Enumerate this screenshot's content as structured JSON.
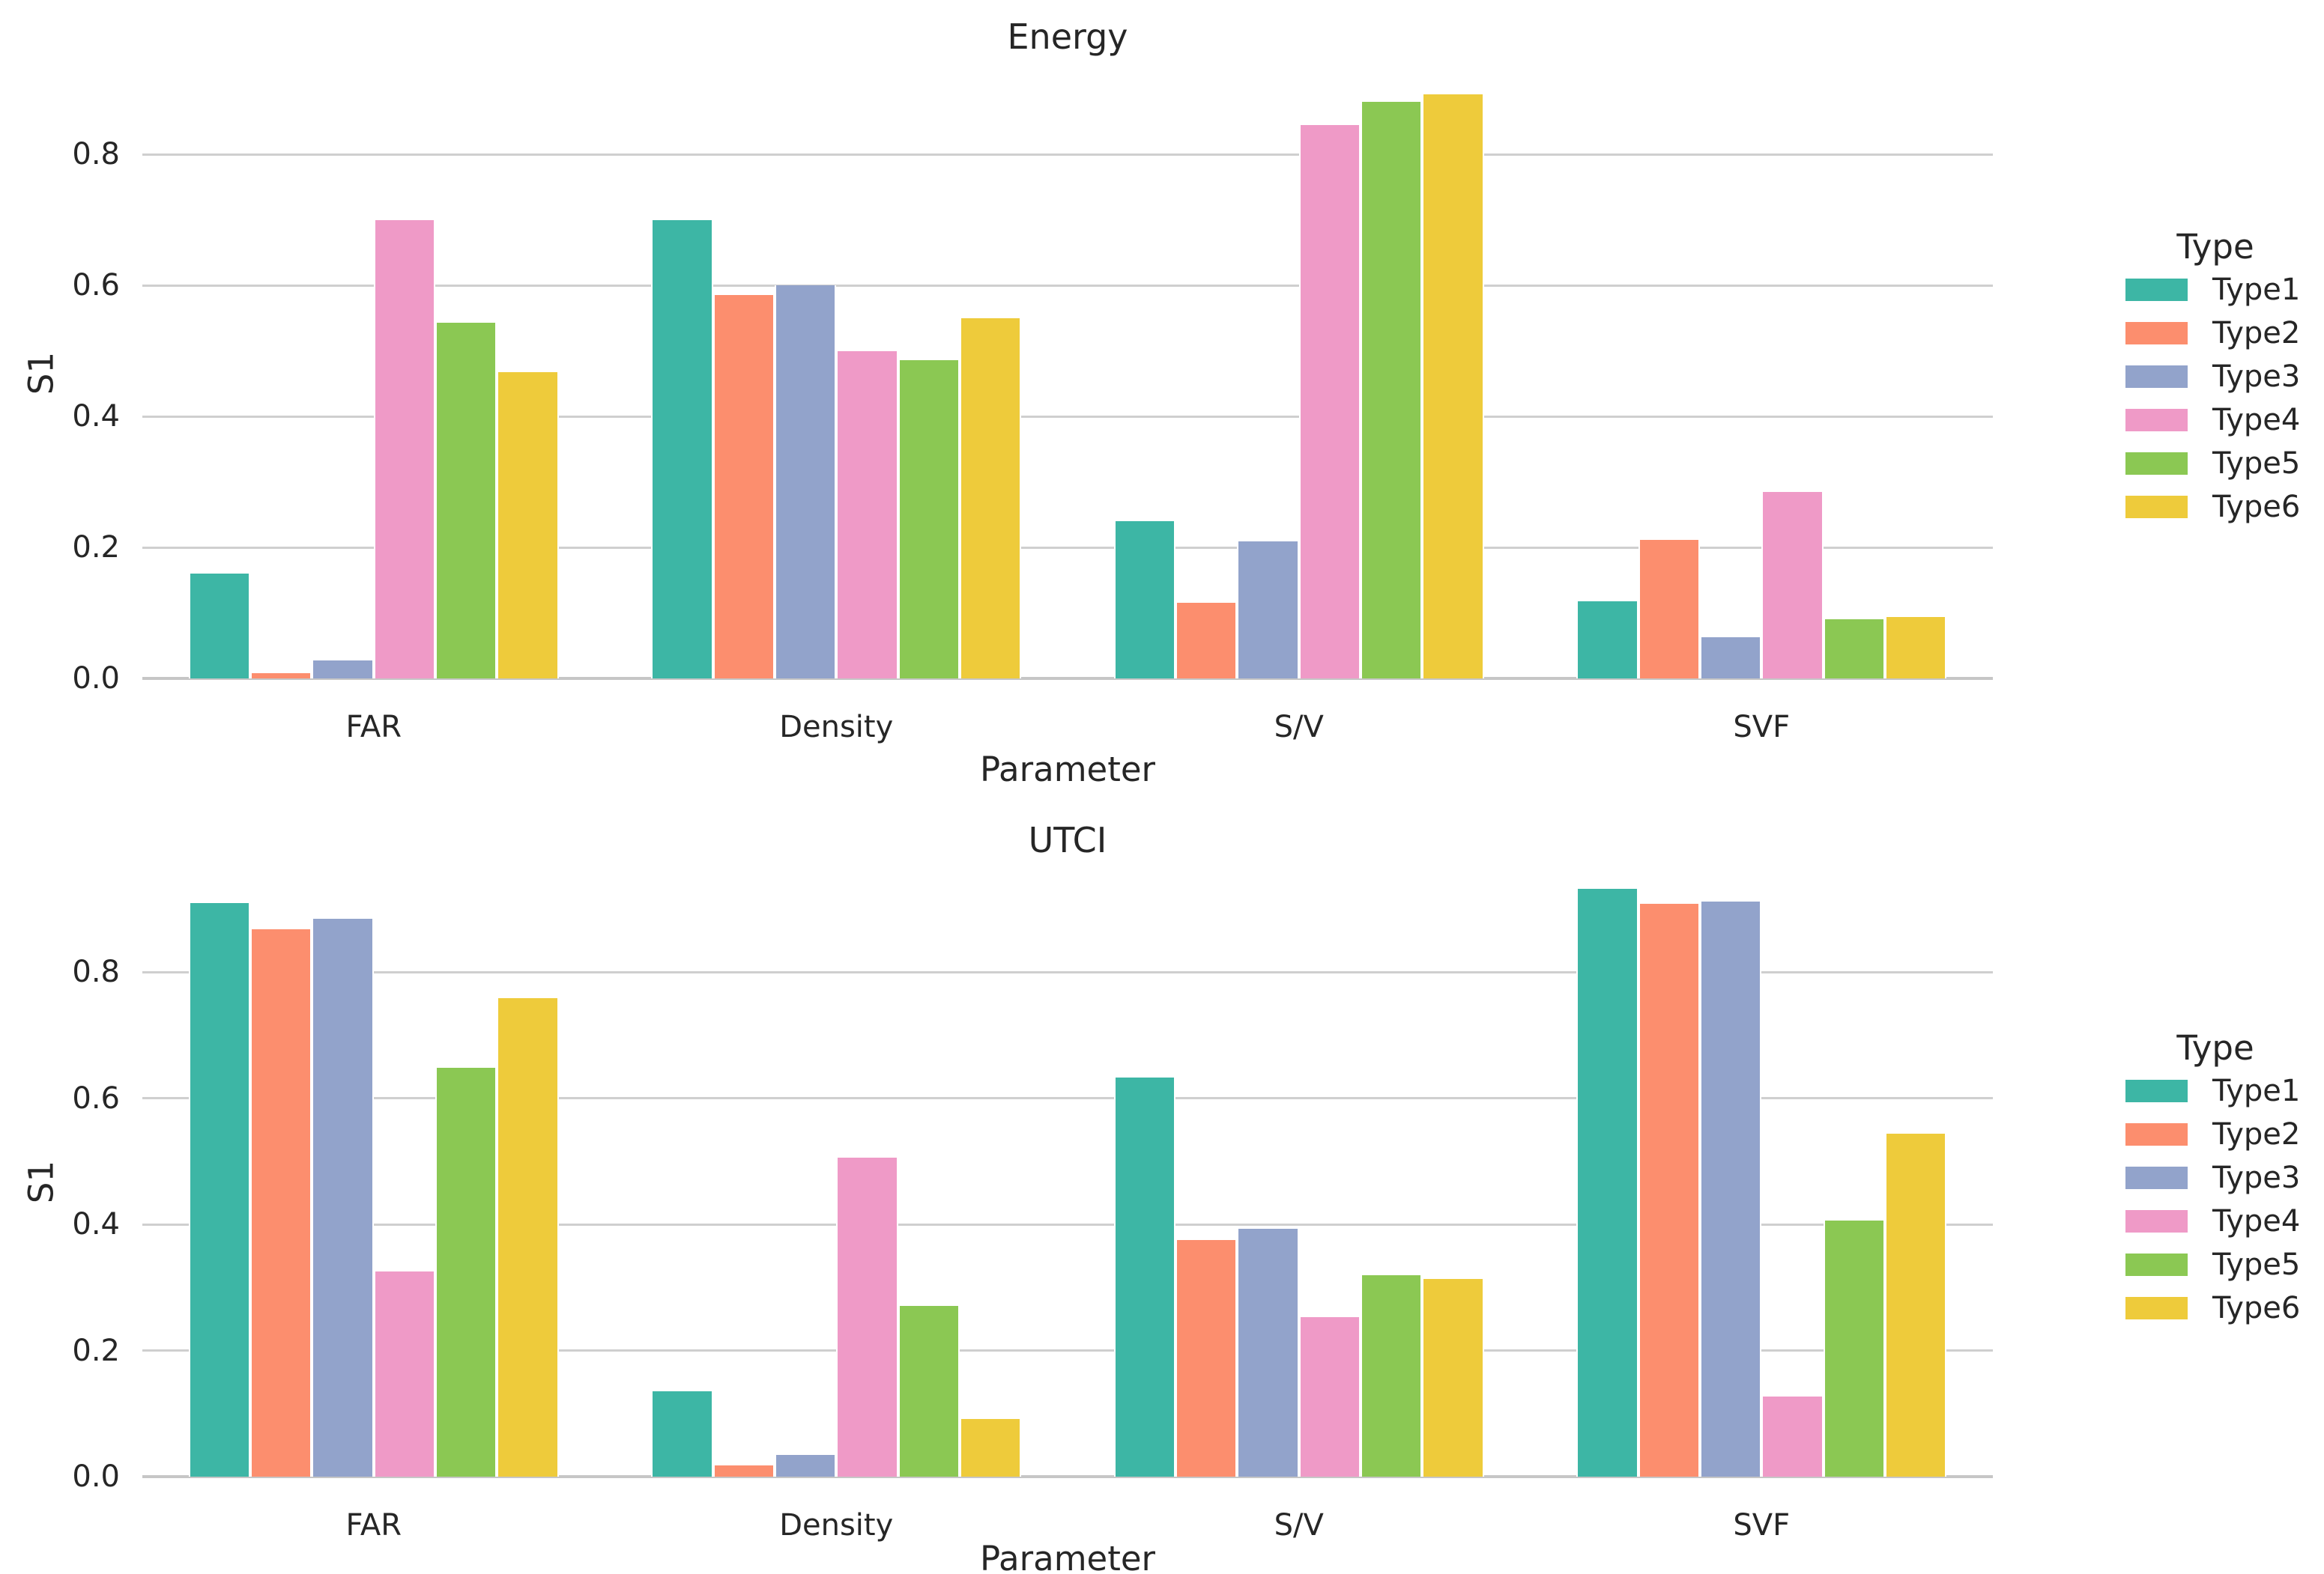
{
  "figure_background": "#ffffff",
  "colors": {
    "grid": "#cfcfcf",
    "axis_line": "#c6c6c6",
    "text": "#262626"
  },
  "legend": {
    "title": "Type",
    "entries": [
      {
        "label": "Type1",
        "color": "#3db6a5"
      },
      {
        "label": "Type2",
        "color": "#fc8e6e"
      },
      {
        "label": "Type3",
        "color": "#92a3cb"
      },
      {
        "label": "Type4",
        "color": "#ef9ac7"
      },
      {
        "label": "Type5",
        "color": "#8bc853"
      },
      {
        "label": "Type6",
        "color": "#eecb3b"
      }
    ]
  },
  "chart_data": [
    {
      "type": "bar",
      "title": "Energy",
      "xlabel": "Parameter",
      "ylabel": "S1",
      "categories": [
        "FAR",
        "Density",
        "S/V",
        "SVF"
      ],
      "yticks": [
        "0.0",
        "0.2",
        "0.4",
        "0.6",
        "0.8"
      ],
      "ylim": [
        0,
        0.937
      ],
      "grid": true,
      "legend_position": "right",
      "series": [
        {
          "name": "Type1",
          "color": "#3db6a5",
          "values": [
            0.16,
            0.7,
            0.24,
            0.118
          ]
        },
        {
          "name": "Type2",
          "color": "#fc8e6e",
          "values": [
            0.008,
            0.585,
            0.116,
            0.211
          ]
        },
        {
          "name": "Type3",
          "color": "#92a3cb",
          "values": [
            0.027,
            0.6,
            0.209,
            0.063
          ]
        },
        {
          "name": "Type4",
          "color": "#ef9ac7",
          "values": [
            0.7,
            0.5,
            0.845,
            0.285
          ]
        },
        {
          "name": "Type5",
          "color": "#8bc853",
          "values": [
            0.543,
            0.486,
            0.88,
            0.09
          ]
        },
        {
          "name": "Type6",
          "color": "#eecb3b",
          "values": [
            0.467,
            0.55,
            0.892,
            0.094
          ]
        }
      ]
    },
    {
      "type": "bar",
      "title": "UTCI",
      "xlabel": "Parameter",
      "ylabel": "S1",
      "categories": [
        "FAR",
        "Density",
        "S/V",
        "SVF"
      ],
      "yticks": [
        "0.0",
        "0.2",
        "0.4",
        "0.6",
        "0.8"
      ],
      "ylim": [
        0,
        0.938
      ],
      "grid": true,
      "legend_position": "right",
      "series": [
        {
          "name": "Type1",
          "color": "#3db6a5",
          "values": [
            0.91,
            0.135,
            0.633,
            0.932
          ]
        },
        {
          "name": "Type2",
          "color": "#fc8e6e",
          "values": [
            0.868,
            0.018,
            0.375,
            0.909
          ]
        },
        {
          "name": "Type3",
          "color": "#92a3cb",
          "values": [
            0.885,
            0.035,
            0.393,
            0.912
          ]
        },
        {
          "name": "Type4",
          "color": "#ef9ac7",
          "values": [
            0.325,
            0.506,
            0.253,
            0.127
          ]
        },
        {
          "name": "Type5",
          "color": "#8bc853",
          "values": [
            0.649,
            0.271,
            0.32,
            0.406
          ]
        },
        {
          "name": "Type6",
          "color": "#eecb3b",
          "values": [
            0.759,
            0.091,
            0.314,
            0.544
          ]
        }
      ]
    }
  ]
}
